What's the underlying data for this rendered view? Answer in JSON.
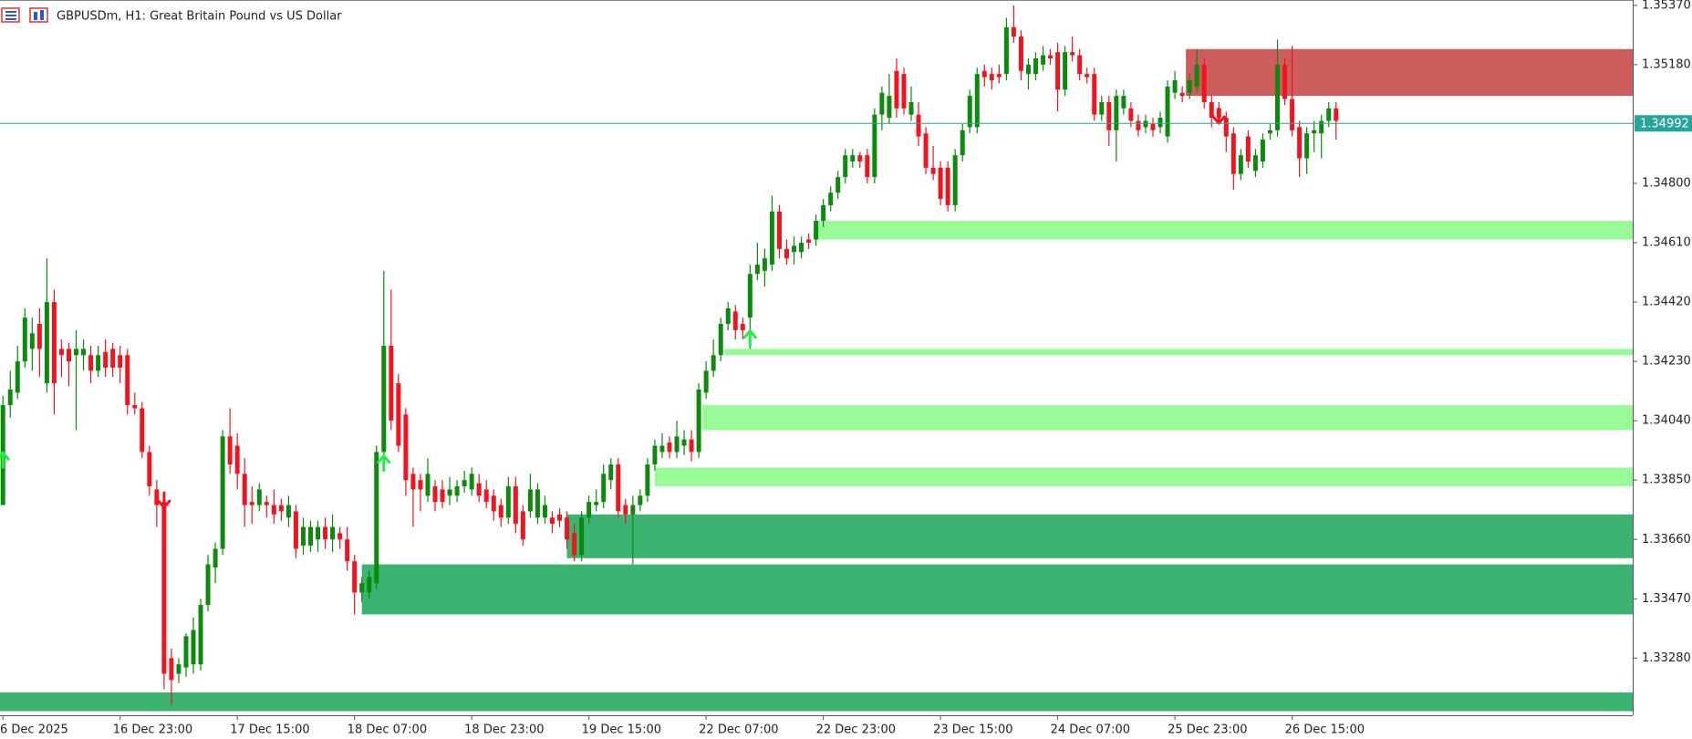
{
  "chart_data": {
    "type": "candlestick",
    "title": "GBPUSDm, H1:  Great Britain Pound vs US Dollar",
    "up_color": "#0b8a0b",
    "down_color": "#f0141e",
    "xlim": [
      -0.4,
      222.5
    ],
    "xticks": [
      {
        "value": 0,
        "label": "6 Dec 2025"
      },
      {
        "value": 16,
        "label": "16 Dec 23:00"
      },
      {
        "value": 32,
        "label": "17 Dec 15:00"
      },
      {
        "value": 48,
        "label": "18 Dec 07:00"
      },
      {
        "value": 64,
        "label": "18 Dec 23:00"
      },
      {
        "value": 80,
        "label": "19 Dec 15:00"
      },
      {
        "value": 96,
        "label": "22 Dec 07:00"
      },
      {
        "value": 112,
        "label": "22 Dec 23:00"
      },
      {
        "value": 128,
        "label": "23 Dec 15:00"
      },
      {
        "value": 144,
        "label": "24 Dec 07:00"
      },
      {
        "value": 160,
        "label": "25 Dec 23:00"
      },
      {
        "value": 176,
        "label": "26 Dec 15:00"
      }
    ],
    "ylim": [
      1.33097,
      1.35387
    ],
    "yticks": [
      {
        "value": 1.3537,
        "label": "1.35370"
      },
      {
        "value": 1.3518,
        "label": "1.35180"
      },
      {
        "value": 1.348,
        "label": "1.34800"
      },
      {
        "value": 1.3461,
        "label": "1.34610"
      },
      {
        "value": 1.3442,
        "label": "1.34420"
      },
      {
        "value": 1.3423,
        "label": "1.34230"
      },
      {
        "value": 1.3404,
        "label": "1.34040"
      },
      {
        "value": 1.3385,
        "label": "1.33850"
      },
      {
        "value": 1.3366,
        "label": "1.33660"
      },
      {
        "value": 1.3347,
        "label": "1.33470"
      },
      {
        "value": 1.3328,
        "label": "1.33280"
      }
    ],
    "current_price": 1.34992,
    "current_price_color": "#26a69a",
    "open": [
      1.3377,
      1.3409,
      1.3413,
      1.3423,
      1.3427,
      1.3435,
      1.3416,
      1.3442,
      1.3427,
      1.3427,
      1.3425,
      1.3425,
      1.3425,
      1.342,
      1.3426,
      1.3427,
      1.3425,
      1.3425,
      1.3409,
      1.3408,
      1.3394,
      1.3382,
      1.3378,
      1.3328,
      1.3323,
      1.3325,
      1.3326,
      1.3326,
      1.3345,
      1.3357,
      1.3363,
      1.3399,
      1.3396,
      1.3387,
      1.3378,
      1.3377,
      1.3378,
      1.3377,
      1.3377,
      1.3373,
      1.3375,
      1.3364,
      1.3364,
      1.3366,
      1.337,
      1.3366,
      1.3368,
      1.3366,
      1.3359,
      1.3349,
      1.3349,
      1.3352,
      1.3394,
      1.3428,
      1.3416,
      1.3406,
      1.3387,
      1.3385,
      1.338,
      1.3383,
      1.3382,
      1.338,
      1.338,
      1.3383,
      1.3382,
      1.3384,
      1.3382,
      1.338,
      1.3377,
      1.3373,
      1.3383,
      1.3375,
      1.3375,
      1.3373,
      1.3373,
      1.3373,
      1.3374,
      1.3373,
      1.3368,
      1.3361,
      1.3373,
      1.3377,
      1.3378,
      1.3385,
      1.339,
      1.3377,
      1.3374,
      1.3377,
      1.338,
      1.339,
      1.3394,
      1.3397,
      1.3394,
      1.3396,
      1.3398,
      1.3394,
      1.3413,
      1.342,
      1.3425,
      1.3435,
      1.3439,
      1.3435,
      1.3437,
      1.3451,
      1.3452,
      1.3454,
      1.3471,
      1.3459,
      1.3458,
      1.3458,
      1.3462,
      1.3462,
      1.3468,
      1.3473,
      1.3477,
      1.3482,
      1.3487,
      1.3489,
      1.3489,
      1.3482,
      1.3502,
      1.3501,
      1.3516,
      1.3515,
      1.3502,
      1.3502,
      1.3496,
      1.3485,
      1.3485,
      1.3485,
      1.3473,
      1.3489,
      1.3498,
      1.3498,
      1.3516,
      1.3515,
      1.3515,
      1.3515,
      1.353,
      1.3527,
      1.3515,
      1.3515,
      1.3518,
      1.3521,
      1.3522,
      1.351,
      1.3522,
      1.3521,
      1.3515,
      1.3515,
      1.3502,
      1.3506,
      1.3497,
      1.3504,
      1.3504,
      1.35,
      1.3498,
      1.3499,
      1.3498,
      1.3495,
      1.3509,
      1.3509,
      1.3509,
      1.3511,
      1.3518,
      1.3506,
      1.3504,
      1.3501,
      1.3496,
      1.3483,
      1.3495,
      1.3484,
      1.3487,
      1.3496,
      1.3497,
      1.3518,
      1.3507,
      1.3498,
      1.3488,
      1.3496,
      1.3496,
      1.35,
      1.3504
    ],
    "high": [
      1.3412,
      1.342,
      1.3428,
      1.344,
      1.3437,
      1.344,
      1.3456,
      1.3446,
      1.343,
      1.3429,
      1.3433,
      1.343,
      1.3428,
      1.3428,
      1.343,
      1.3429,
      1.3428,
      1.3427,
      1.3413,
      1.341,
      1.3396,
      1.3385,
      1.338,
      1.3331,
      1.3328,
      1.3336,
      1.3341,
      1.3347,
      1.3361,
      1.3365,
      1.3401,
      1.3408,
      1.34,
      1.3392,
      1.3383,
      1.3384,
      1.338,
      1.3382,
      1.3379,
      1.338,
      1.3377,
      1.3373,
      1.3372,
      1.3372,
      1.3373,
      1.3374,
      1.337,
      1.337,
      1.3361,
      1.3354,
      1.3356,
      1.3396,
      1.3452,
      1.3446,
      1.3419,
      1.3408,
      1.3389,
      1.3387,
      1.3392,
      1.3385,
      1.3385,
      1.3386,
      1.3385,
      1.3388,
      1.3389,
      1.3387,
      1.3385,
      1.3382,
      1.3379,
      1.3386,
      1.3386,
      1.3377,
      1.3387,
      1.3384,
      1.338,
      1.3375,
      1.3376,
      1.3375,
      1.3371,
      1.3375,
      1.338,
      1.3382,
      1.339,
      1.3392,
      1.3392,
      1.3379,
      1.338,
      1.3382,
      1.3392,
      1.3398,
      1.34,
      1.3399,
      1.3404,
      1.3401,
      1.3401,
      1.3416,
      1.3423,
      1.343,
      1.3437,
      1.3442,
      1.3441,
      1.3437,
      1.3454,
      1.3461,
      1.3459,
      1.3476,
      1.3473,
      1.3462,
      1.3463,
      1.3463,
      1.3464,
      1.347,
      1.3475,
      1.3479,
      1.3484,
      1.3491,
      1.3491,
      1.349,
      1.3491,
      1.3504,
      1.3511,
      1.3515,
      1.352,
      1.3517,
      1.3511,
      1.3506,
      1.3498,
      1.3492,
      1.3487,
      1.3487,
      1.3491,
      1.3499,
      1.351,
      1.3517,
      1.3518,
      1.3517,
      1.3518,
      1.3533,
      1.3537,
      1.3529,
      1.352,
      1.3522,
      1.3524,
      1.3523,
      1.3525,
      1.3524,
      1.3527,
      1.3523,
      1.3517,
      1.3517,
      1.3508,
      1.3508,
      1.351,
      1.351,
      1.3506,
      1.3502,
      1.3502,
      1.3501,
      1.3503,
      1.3513,
      1.3516,
      1.3511,
      1.3515,
      1.3523,
      1.352,
      1.3508,
      1.3506,
      1.3503,
      1.3498,
      1.3491,
      1.3497,
      1.3491,
      1.3496,
      1.3499,
      1.3526,
      1.352,
      1.3524,
      1.35,
      1.3498,
      1.35,
      1.3502,
      1.3506,
      1.3506
    ],
    "low": [
      1.3377,
      1.3405,
      1.3411,
      1.3421,
      1.342,
      1.3418,
      1.3413,
      1.3406,
      1.3418,
      1.3415,
      1.3401,
      1.342,
      1.3416,
      1.3418,
      1.3418,
      1.3418,
      1.3416,
      1.3406,
      1.3406,
      1.3392,
      1.338,
      1.337,
      1.3318,
      1.3313,
      1.332,
      1.3322,
      1.3323,
      1.3324,
      1.3343,
      1.3352,
      1.3361,
      1.3387,
      1.3382,
      1.337,
      1.3371,
      1.3375,
      1.3373,
      1.3371,
      1.3372,
      1.337,
      1.336,
      1.3361,
      1.3362,
      1.3362,
      1.3363,
      1.3362,
      1.3363,
      1.3356,
      1.3342,
      1.3346,
      1.3347,
      1.335,
      1.3392,
      1.3401,
      1.3394,
      1.338,
      1.337,
      1.3375,
      1.3378,
      1.3375,
      1.3376,
      1.3377,
      1.3378,
      1.3381,
      1.338,
      1.3378,
      1.3376,
      1.3372,
      1.337,
      1.3371,
      1.3368,
      1.3364,
      1.3373,
      1.3371,
      1.3371,
      1.3368,
      1.337,
      1.3363,
      1.3359,
      1.3359,
      1.3371,
      1.3375,
      1.3376,
      1.3382,
      1.3373,
      1.3371,
      1.3358,
      1.3375,
      1.3378,
      1.3388,
      1.3392,
      1.3392,
      1.3392,
      1.3393,
      1.3391,
      1.3392,
      1.3411,
      1.3418,
      1.3423,
      1.3433,
      1.343,
      1.343,
      1.3427,
      1.3449,
      1.3447,
      1.3452,
      1.3456,
      1.3454,
      1.3454,
      1.3456,
      1.3459,
      1.346,
      1.3466,
      1.3471,
      1.3475,
      1.348,
      1.3485,
      1.3485,
      1.348,
      1.348,
      1.3497,
      1.3499,
      1.3501,
      1.3502,
      1.35,
      1.3492,
      1.3483,
      1.3481,
      1.3473,
      1.3471,
      1.3471,
      1.3487,
      1.3496,
      1.3496,
      1.3511,
      1.351,
      1.3512,
      1.3513,
      1.3525,
      1.3513,
      1.351,
      1.3513,
      1.3516,
      1.3518,
      1.3503,
      1.3508,
      1.3519,
      1.3513,
      1.3512,
      1.35,
      1.35,
      1.3492,
      1.3487,
      1.3502,
      1.3498,
      1.3495,
      1.3496,
      1.3495,
      1.3496,
      1.3493,
      1.3507,
      1.3506,
      1.3507,
      1.3509,
      1.3504,
      1.3498,
      1.3499,
      1.349,
      1.3478,
      1.3481,
      1.3485,
      1.3482,
      1.3485,
      1.3494,
      1.3495,
      1.3505,
      1.3495,
      1.3482,
      1.3483,
      1.349,
      1.3488,
      1.3498,
      1.3494
    ],
    "close": [
      1.3409,
      1.3414,
      1.3423,
      1.3437,
      1.3432,
      1.3427,
      1.3442,
      1.3416,
      1.3425,
      1.3423,
      1.3427,
      1.3427,
      1.342,
      1.3425,
      1.3421,
      1.3421,
      1.3421,
      1.3409,
      1.3408,
      1.3394,
      1.3383,
      1.3377,
      1.3323,
      1.3321,
      1.3326,
      1.3335,
      1.3337,
      1.3345,
      1.3358,
      1.3363,
      1.3399,
      1.339,
      1.3387,
      1.3377,
      1.3377,
      1.3382,
      1.3377,
      1.3374,
      1.3375,
      1.3377,
      1.3363,
      1.337,
      1.337,
      1.337,
      1.3366,
      1.337,
      1.3366,
      1.3359,
      1.3349,
      1.3352,
      1.3354,
      1.3394,
      1.3428,
      1.3404,
      1.3396,
      1.3385,
      1.3382,
      1.3382,
      1.3387,
      1.3378,
      1.3378,
      1.3382,
      1.3383,
      1.3385,
      1.3387,
      1.338,
      1.3378,
      1.3375,
      1.3373,
      1.3383,
      1.3371,
      1.3366,
      1.3382,
      1.3382,
      1.3377,
      1.3371,
      1.3372,
      1.3366,
      1.3361,
      1.3373,
      1.3378,
      1.3378,
      1.3387,
      1.339,
      1.3375,
      1.3374,
      1.3377,
      1.338,
      1.339,
      1.3396,
      1.3396,
      1.3394,
      1.3399,
      1.3398,
      1.3394,
      1.3414,
      1.342,
      1.3425,
      1.3435,
      1.344,
      1.3433,
      1.3433,
      1.3451,
      1.3454,
      1.3456,
      1.3471,
      1.3459,
      1.3456,
      1.346,
      1.3461,
      1.3461,
      1.3468,
      1.3473,
      1.3477,
      1.3482,
      1.3489,
      1.3489,
      1.3487,
      1.3482,
      1.3502,
      1.3509,
      1.3508,
      1.3504,
      1.3504,
      1.3506,
      1.3495,
      1.3485,
      1.3483,
      1.3475,
      1.3473,
      1.3489,
      1.3497,
      1.3508,
      1.3515,
      1.3514,
      1.3513,
      1.3514,
      1.353,
      1.3527,
      1.3516,
      1.3518,
      1.352,
      1.3521,
      1.352,
      1.351,
      1.3522,
      1.3521,
      1.3515,
      1.3514,
      1.3502,
      1.3506,
      1.3497,
      1.3508,
      1.3508,
      1.35,
      1.3497,
      1.35,
      1.3497,
      1.3501,
      1.3511,
      1.3513,
      1.3508,
      1.3513,
      1.3518,
      1.3506,
      1.3501,
      1.3501,
      1.3495,
      1.3483,
      1.3489,
      1.3487,
      1.3489,
      1.3494,
      1.3497,
      1.3518,
      1.3507,
      1.3497,
      1.3488,
      1.3496,
      1.3497,
      1.35,
      1.3504,
      1.35
    ],
    "zones": [
      {
        "from": 161.5,
        "top": 1.3523,
        "bottom": 1.3508,
        "color": "#cd5c5c"
      },
      {
        "from": 111,
        "top": 1.3468,
        "bottom": 1.3462,
        "color": "#98fb98"
      },
      {
        "from": 98.5,
        "top": 1.3427,
        "bottom": 1.3425,
        "color": "#98fb98"
      },
      {
        "from": 95.5,
        "top": 1.3409,
        "bottom": 1.3401,
        "color": "#98fb98"
      },
      {
        "from": 89,
        "top": 1.3389,
        "bottom": 1.3383,
        "color": "#98fb98"
      },
      {
        "from": 77,
        "top": 1.3374,
        "bottom": 1.336,
        "color": "#3cb371"
      },
      {
        "from": 49,
        "top": 1.3358,
        "bottom": 1.3342,
        "color": "#3cb371"
      },
      {
        "from": -0.4,
        "top": 1.3317,
        "bottom": 1.3311,
        "color": "#3cb371"
      }
    ],
    "arrows": [
      {
        "index": 0,
        "price": 1.3392,
        "direction": "up",
        "color": "#22ee44"
      },
      {
        "index": 52,
        "price": 1.3391,
        "direction": "up",
        "color": "#22ee44"
      },
      {
        "index": 102,
        "price": 1.3431,
        "direction": "up",
        "color": "#22ee44"
      },
      {
        "index": 22,
        "price": 1.3378,
        "direction": "down",
        "color": "#f0141e"
      },
      {
        "index": 166,
        "price": 1.3501,
        "direction": "down",
        "color": "#f0141e"
      }
    ]
  }
}
